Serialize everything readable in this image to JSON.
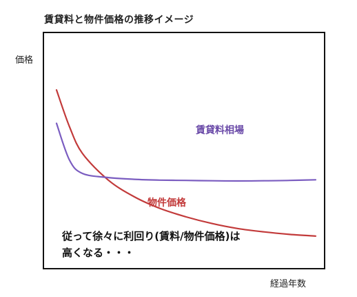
{
  "chart_data": {
    "type": "line",
    "title": "賃貸料と物件価格の推移イメージ",
    "xlabel": "経過年数",
    "ylabel": "価格",
    "x": [
      0,
      5,
      10,
      20,
      30,
      40,
      50,
      60,
      70,
      80,
      90,
      100
    ],
    "series": [
      {
        "name": "物件価格",
        "color": "#c23a3a",
        "values": [
          100,
          78,
          62,
          46,
          36,
          29,
          24,
          20,
          17,
          15,
          13.5,
          12.5
        ]
      },
      {
        "name": "賃貸料相場",
        "color": "#7a5cc0",
        "values": [
          80,
          58,
          50,
          47.5,
          46.5,
          46,
          45.8,
          45.6,
          45.5,
          45.6,
          45.8,
          46.2
        ]
      }
    ],
    "ylim": [
      0,
      110
    ],
    "xlim": [
      0,
      100
    ],
    "grid": false,
    "annotation": [
      "従って徐々に利回り(賃料/物件価格)は",
      "高くなる・・・"
    ]
  }
}
